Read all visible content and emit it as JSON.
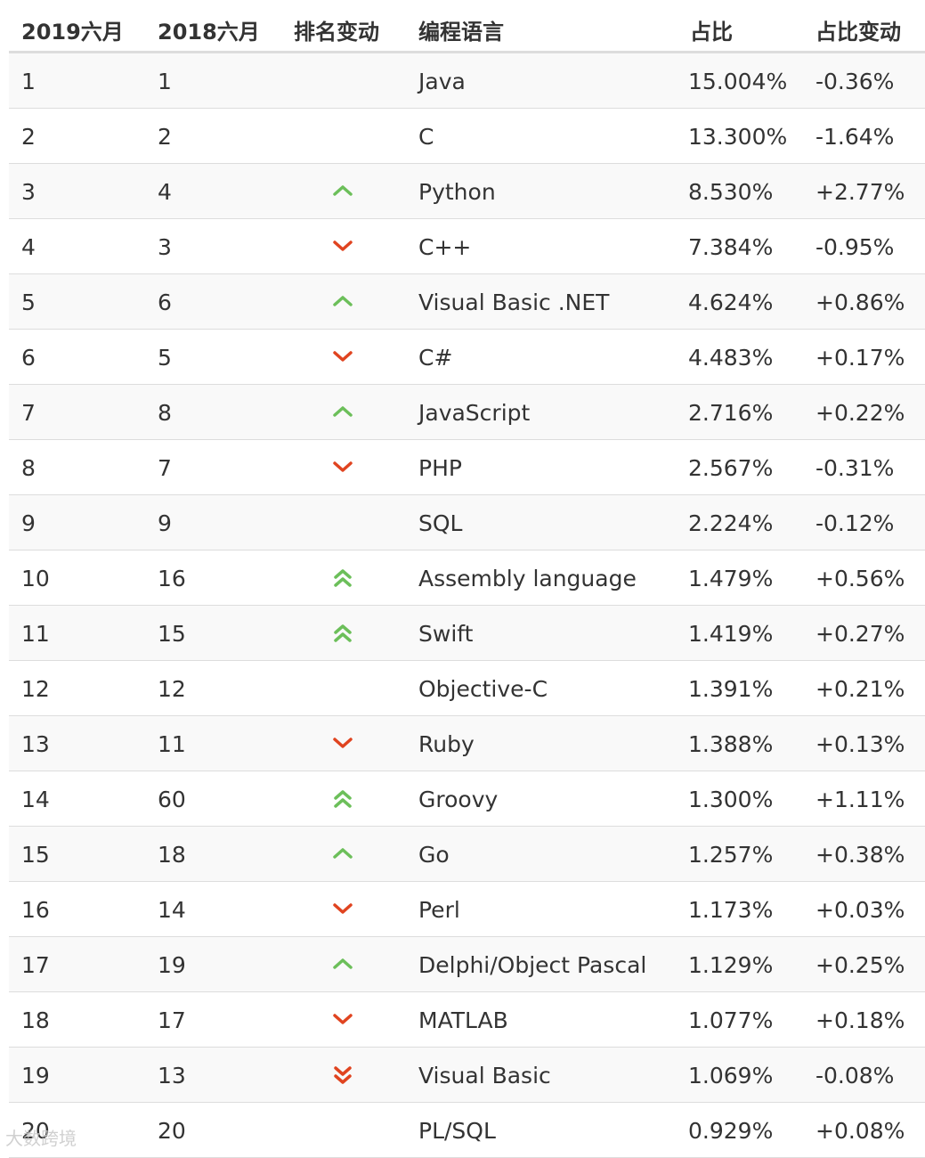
{
  "colors": {
    "up": "#6cbf5a",
    "down": "#e04420"
  },
  "header": {
    "rank_2019": "2019六月",
    "rank_2018": "2018六月",
    "rank_change": "排名变动",
    "language": "编程语言",
    "share": "占比",
    "share_change": "占比变动"
  },
  "rows": [
    {
      "r2019": "1",
      "r2018": "1",
      "change": "none",
      "language": "Java",
      "share": "15.004%",
      "share_change": "-0.36%"
    },
    {
      "r2019": "2",
      "r2018": "2",
      "change": "none",
      "language": "C",
      "share": "13.300%",
      "share_change": "-1.64%"
    },
    {
      "r2019": "3",
      "r2018": "4",
      "change": "up",
      "language": "Python",
      "share": "8.530%",
      "share_change": "+2.77%"
    },
    {
      "r2019": "4",
      "r2018": "3",
      "change": "down",
      "language": "C++",
      "share": "7.384%",
      "share_change": "-0.95%"
    },
    {
      "r2019": "5",
      "r2018": "6",
      "change": "up",
      "language": "Visual Basic .NET",
      "share": "4.624%",
      "share_change": "+0.86%"
    },
    {
      "r2019": "6",
      "r2018": "5",
      "change": "down",
      "language": "C#",
      "share": "4.483%",
      "share_change": "+0.17%"
    },
    {
      "r2019": "7",
      "r2018": "8",
      "change": "up",
      "language": "JavaScript",
      "share": "2.716%",
      "share_change": "+0.22%"
    },
    {
      "r2019": "8",
      "r2018": "7",
      "change": "down",
      "language": "PHP",
      "share": "2.567%",
      "share_change": "-0.31%"
    },
    {
      "r2019": "9",
      "r2018": "9",
      "change": "none",
      "language": "SQL",
      "share": "2.224%",
      "share_change": "-0.12%"
    },
    {
      "r2019": "10",
      "r2018": "16",
      "change": "up2",
      "language": "Assembly language",
      "share": "1.479%",
      "share_change": "+0.56%"
    },
    {
      "r2019": "11",
      "r2018": "15",
      "change": "up2",
      "language": "Swift",
      "share": "1.419%",
      "share_change": "+0.27%"
    },
    {
      "r2019": "12",
      "r2018": "12",
      "change": "none",
      "language": "Objective-C",
      "share": "1.391%",
      "share_change": "+0.21%"
    },
    {
      "r2019": "13",
      "r2018": "11",
      "change": "down",
      "language": "Ruby",
      "share": "1.388%",
      "share_change": "+0.13%"
    },
    {
      "r2019": "14",
      "r2018": "60",
      "change": "up2",
      "language": "Groovy",
      "share": "1.300%",
      "share_change": "+1.11%"
    },
    {
      "r2019": "15",
      "r2018": "18",
      "change": "up",
      "language": "Go",
      "share": "1.257%",
      "share_change": "+0.38%"
    },
    {
      "r2019": "16",
      "r2018": "14",
      "change": "down",
      "language": "Perl",
      "share": "1.173%",
      "share_change": "+0.03%"
    },
    {
      "r2019": "17",
      "r2018": "19",
      "change": "up",
      "language": "Delphi/Object Pascal",
      "share": "1.129%",
      "share_change": "+0.25%"
    },
    {
      "r2019": "18",
      "r2018": "17",
      "change": "down",
      "language": "MATLAB",
      "share": "1.077%",
      "share_change": "+0.18%"
    },
    {
      "r2019": "19",
      "r2018": "13",
      "change": "down2",
      "language": "Visual Basic",
      "share": "1.069%",
      "share_change": "-0.08%"
    },
    {
      "r2019": "20",
      "r2018": "20",
      "change": "none",
      "language": "PL/SQL",
      "share": "0.929%",
      "share_change": "+0.08%"
    }
  ],
  "watermark": "大数跨境"
}
